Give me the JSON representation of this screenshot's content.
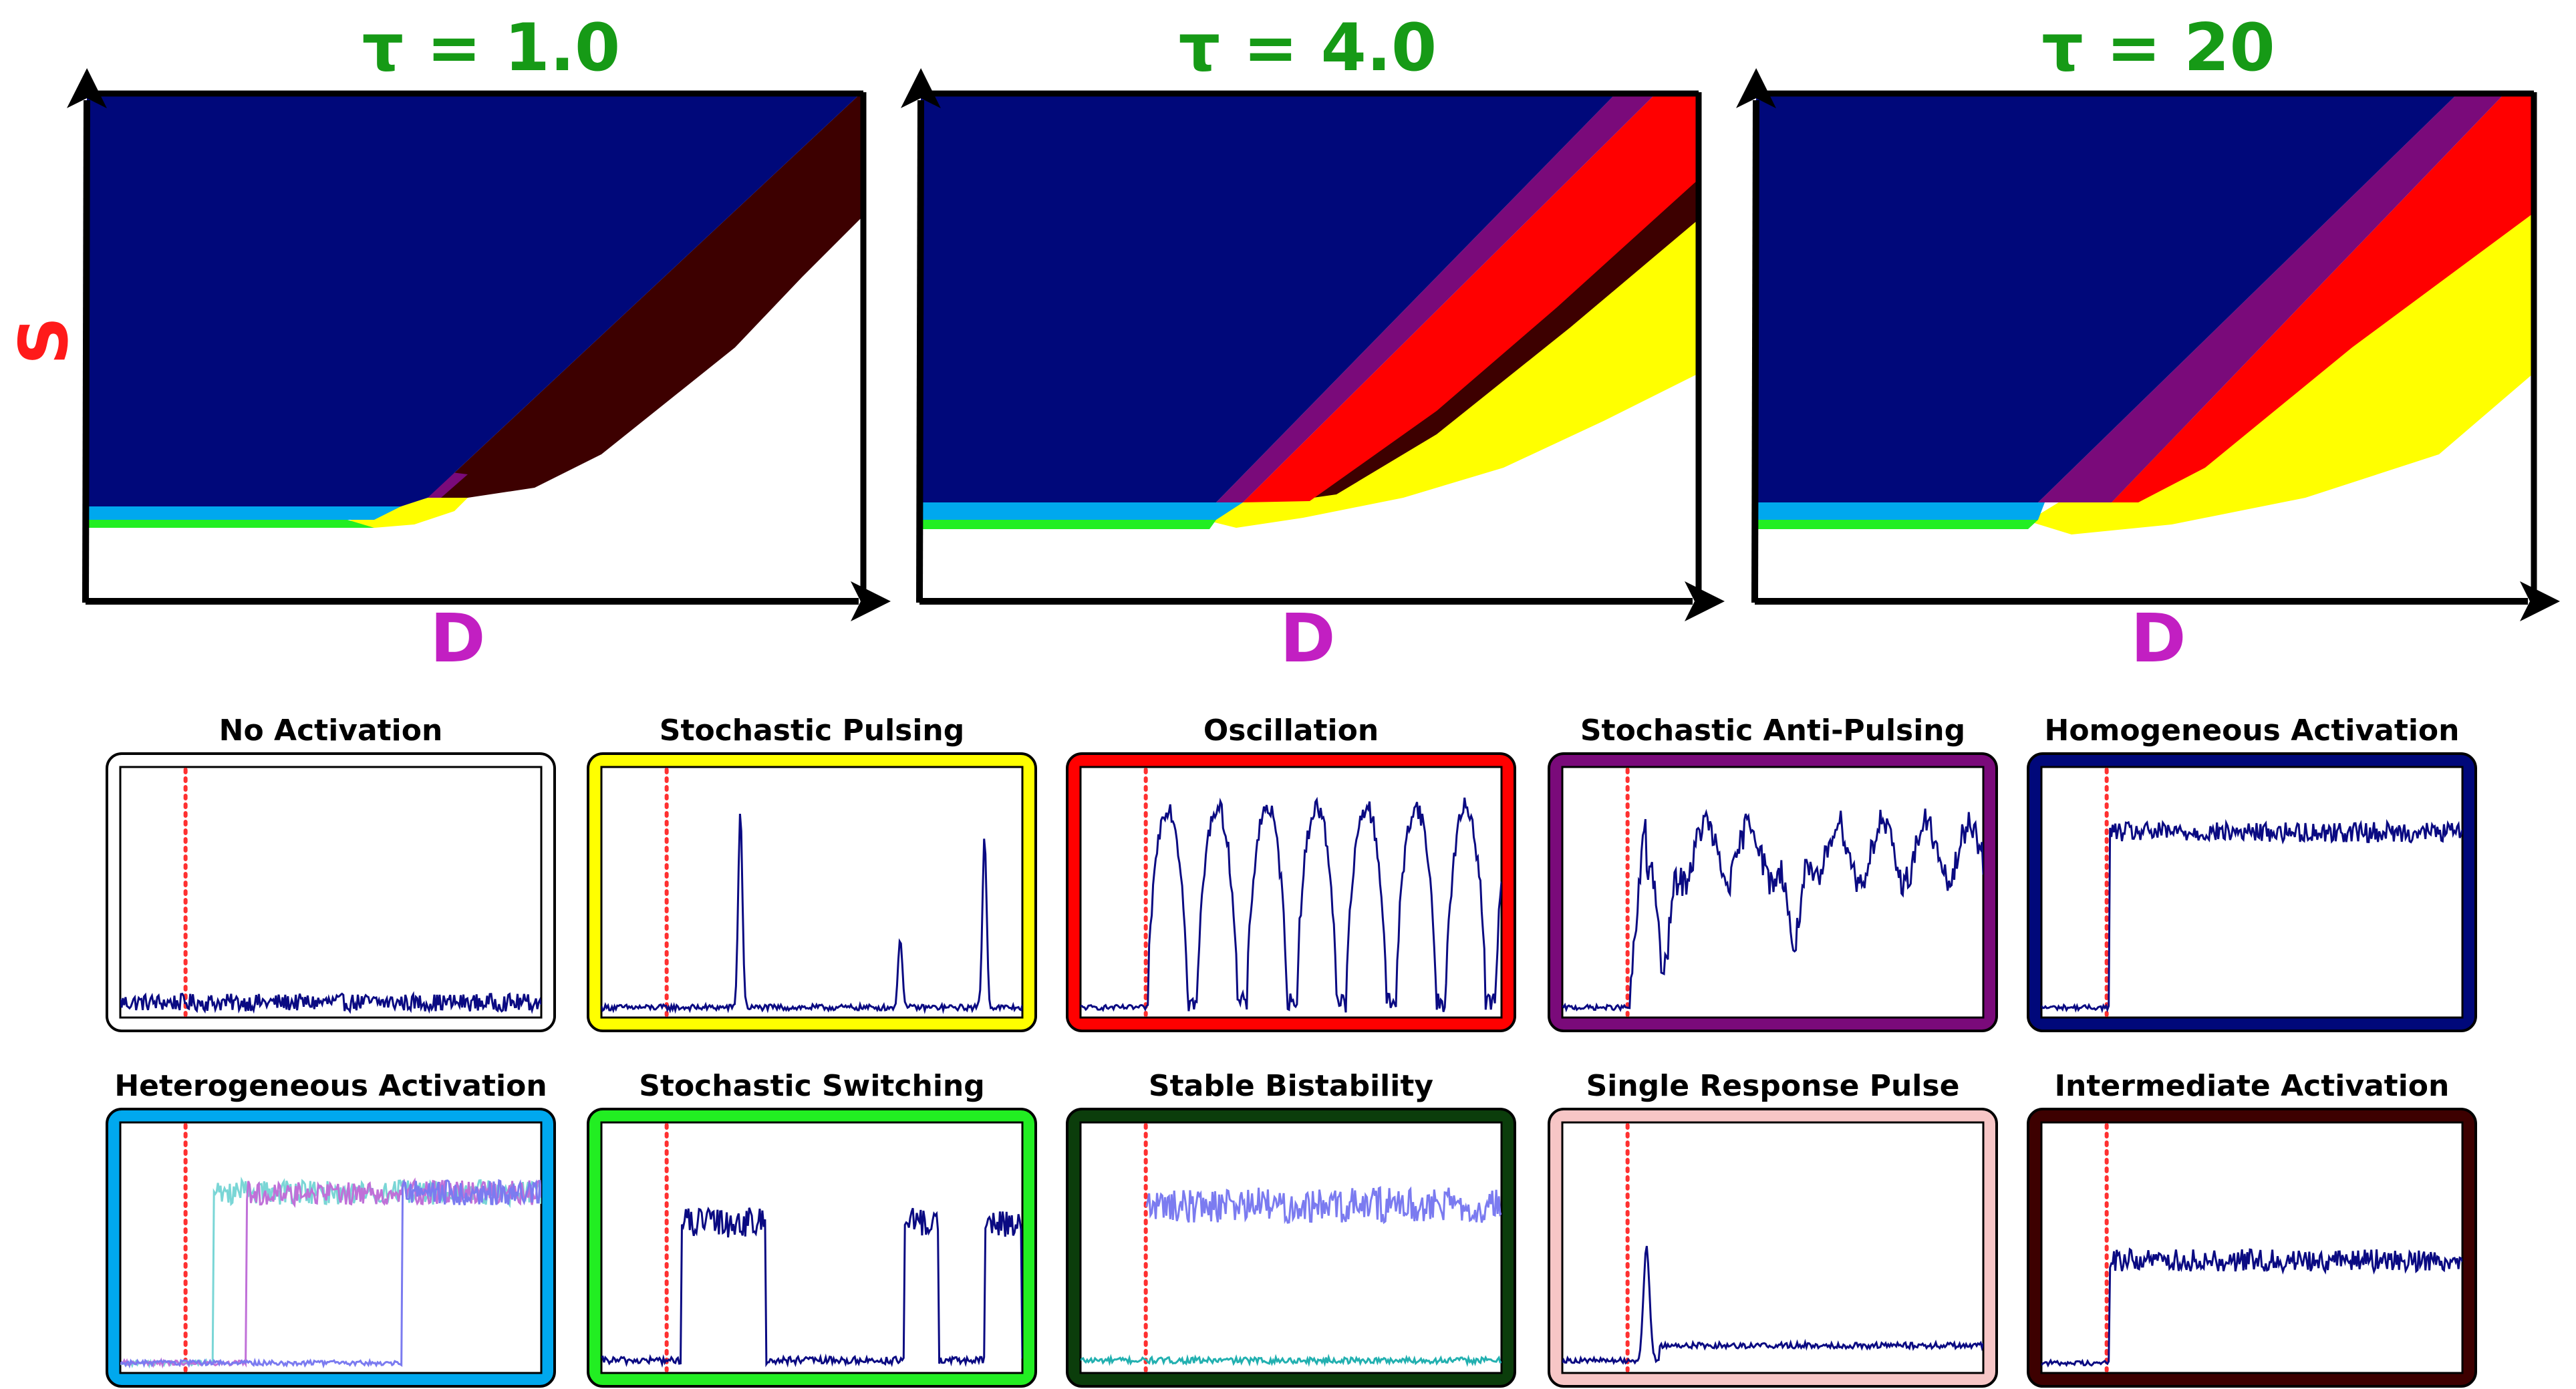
{
  "phase_diagrams": [
    {
      "title": "τ = 1.0",
      "x_label": "D",
      "y_label": "S"
    },
    {
      "title": "τ = 4.0",
      "x_label": "D",
      "y_label": ""
    },
    {
      "title": "τ = 20",
      "x_label": "D",
      "y_label": ""
    }
  ],
  "colors": {
    "title": "#169a16",
    "x_label": "#c21fc2",
    "y_label": "#ff1a1a",
    "homogeneous": "#00087a",
    "heterogeneous": "#00a8ee",
    "switching": "#22ee22",
    "pulsing": "#ffff00",
    "oscillation": "#ff0000",
    "anti_pulsing": "#7a0a7a",
    "intermediate": "#3d0000",
    "bistable_frame": "#0b3d0b",
    "response_pulse_frame": "#f7c6c6",
    "trace": "#0a0a82",
    "stimulus_line": "#ff3030"
  },
  "behaviors": [
    {
      "title": "No Activation",
      "frame_color": "#ffffff",
      "kind": "noise"
    },
    {
      "title": "Stochastic Pulsing",
      "frame_color": "#ffff00",
      "kind": "pulsing"
    },
    {
      "title": "Oscillation",
      "frame_color": "#ff0000",
      "kind": "oscillation"
    },
    {
      "title": "Stochastic Anti-Pulsing",
      "frame_color": "#7a0a7a",
      "kind": "antipulse"
    },
    {
      "title": "Homogeneous Activation",
      "frame_color": "#00087a",
      "kind": "homogeneous"
    },
    {
      "title": "Heterogeneous Activation",
      "frame_color": "#00a8ee",
      "kind": "heterogeneous"
    },
    {
      "title": "Stochastic Switching",
      "frame_color": "#22ee22",
      "kind": "switching"
    },
    {
      "title": "Stable Bistability",
      "frame_color": "#0b3d0b",
      "kind": "bistable"
    },
    {
      "title": "Single Response Pulse",
      "frame_color": "#f7c6c6",
      "kind": "singlepulse"
    },
    {
      "title": "Intermediate Activation",
      "frame_color": "#3d0000",
      "kind": "intermediate"
    }
  ]
}
